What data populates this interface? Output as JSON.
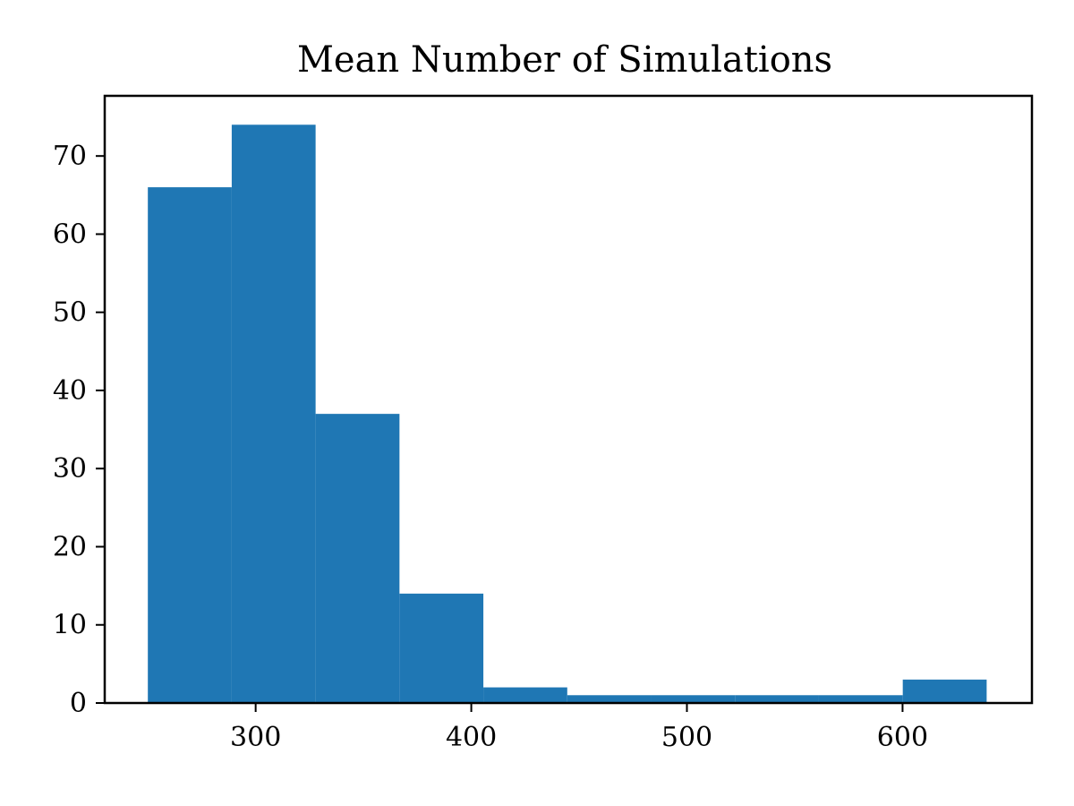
{
  "chart_data": {
    "type": "bar",
    "subtype": "histogram",
    "title": "Mean Number of Simulations",
    "xlabel": "",
    "ylabel": "",
    "bin_edges": [
      250,
      288.9,
      327.8,
      366.7,
      405.6,
      444.5,
      483.4,
      522.3,
      561.2,
      600.1,
      639
    ],
    "values": [
      66,
      74,
      37,
      14,
      2,
      1,
      1,
      1,
      1,
      3
    ],
    "xlim": [
      230,
      660
    ],
    "ylim": [
      0,
      77.7
    ],
    "xticks": [
      300,
      400,
      500,
      600
    ],
    "xtick_labels": [
      "300",
      "400",
      "500",
      "600"
    ],
    "yticks": [
      0,
      10,
      20,
      30,
      40,
      50,
      60,
      70
    ],
    "ytick_labels": [
      "0",
      "10",
      "20",
      "30",
      "40",
      "50",
      "60",
      "70"
    ],
    "grid": false,
    "legend": "none",
    "colors": {
      "bar": "#1f77b4",
      "axes": "#000000"
    }
  }
}
